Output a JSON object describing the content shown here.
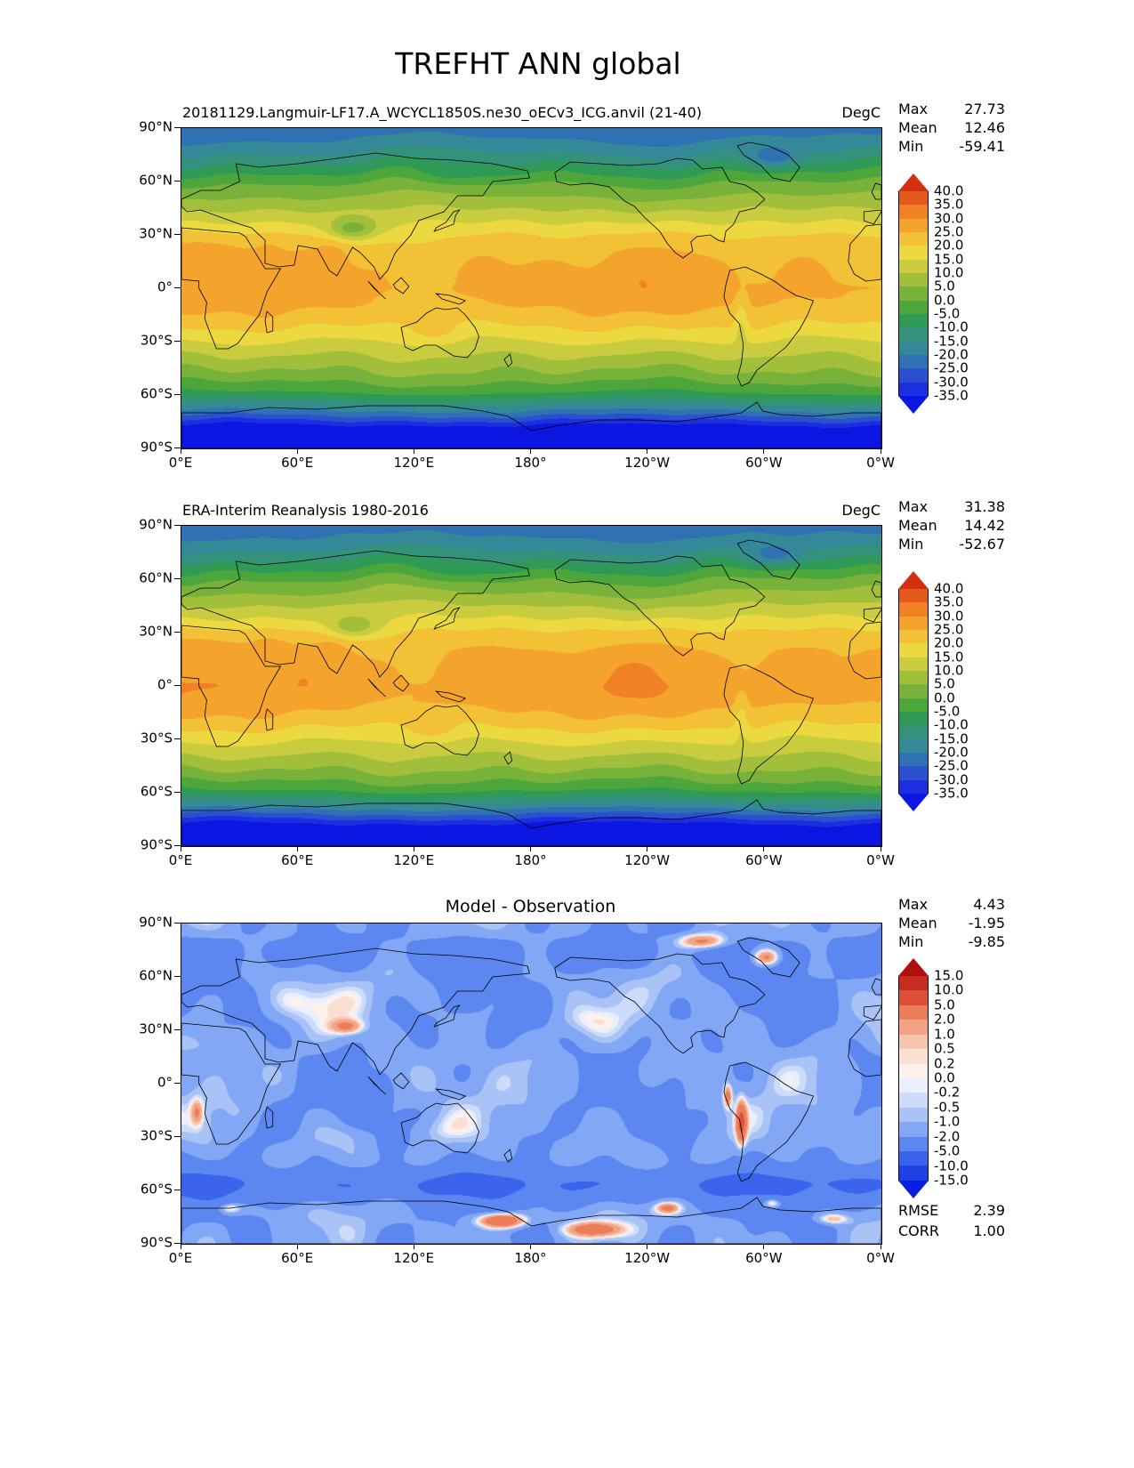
{
  "figure_title": "TREFHT ANN global",
  "axes": {
    "x_tick_labels": [
      "0°E",
      "60°E",
      "120°E",
      "180°",
      "120°W",
      "60°W",
      "0°W"
    ],
    "y_tick_labels": [
      "90°N",
      "60°N",
      "30°N",
      "0°",
      "30°S",
      "60°S",
      "90°S"
    ],
    "x_range_deg": [
      0,
      360
    ],
    "y_range_deg": [
      -90,
      90
    ],
    "grid": false
  },
  "chart_data": [
    {
      "type": "heatmap",
      "projection": "global-equirectangular",
      "title": "20181129.Langmuir-LF17.A_WCYCL1850S.ne30_oECv3_ICG.anvil (21-40)",
      "units": "DegC",
      "stats": {
        "max_label": "Max",
        "max": "27.73",
        "mean_label": "Mean",
        "mean": "12.46",
        "min_label": "Min",
        "min": "-59.41"
      },
      "colorbar": {
        "levels": [
          -35,
          -30,
          -25,
          -20,
          -15,
          -10,
          -5,
          0,
          5,
          10,
          15,
          20,
          25,
          30,
          35,
          40
        ],
        "tick_labels": [
          "40.0",
          "35.0",
          "30.0",
          "25.0",
          "20.0",
          "15.0",
          "10.0",
          "5.0",
          "0.0",
          "-5.0",
          "-10.0",
          "-15.0",
          "-20.0",
          "-25.0",
          "-30.0",
          "-35.0"
        ],
        "colors": [
          "#0b16e0",
          "#1b2fe0",
          "#2b50cf",
          "#2f72b4",
          "#348898",
          "#33917c",
          "#2f9a55",
          "#4ca63c",
          "#78b23a",
          "#a2bf3c",
          "#c9cc3e",
          "#ecd83f",
          "#f2c136",
          "#f4a42d",
          "#f08125",
          "#e35a1c",
          "#d42f10"
        ]
      }
    },
    {
      "type": "heatmap",
      "projection": "global-equirectangular",
      "title": "ERA-Interim Reanalysis 1980-2016",
      "units": "DegC",
      "stats": {
        "max_label": "Max",
        "max": "31.38",
        "mean_label": "Mean",
        "mean": "14.42",
        "min_label": "Min",
        "min": "-52.67"
      },
      "colorbar": {
        "levels": [
          -35,
          -30,
          -25,
          -20,
          -15,
          -10,
          -5,
          0,
          5,
          10,
          15,
          20,
          25,
          30,
          35,
          40
        ],
        "tick_labels": [
          "40.0",
          "35.0",
          "30.0",
          "25.0",
          "20.0",
          "15.0",
          "10.0",
          "5.0",
          "0.0",
          "-5.0",
          "-10.0",
          "-15.0",
          "-20.0",
          "-25.0",
          "-30.0",
          "-35.0"
        ],
        "colors": [
          "#0b16e0",
          "#1b2fe0",
          "#2b50cf",
          "#2f72b4",
          "#348898",
          "#33917c",
          "#2f9a55",
          "#4ca63c",
          "#78b23a",
          "#a2bf3c",
          "#c9cc3e",
          "#ecd83f",
          "#f2c136",
          "#f4a42d",
          "#f08125",
          "#e35a1c",
          "#d42f10"
        ]
      }
    },
    {
      "type": "heatmap",
      "projection": "global-equirectangular",
      "title": "Model - Observation",
      "units": "",
      "stats": {
        "max_label": "Max",
        "max": "4.43",
        "mean_label": "Mean",
        "mean": "-1.95",
        "min_label": "Min",
        "min": "-9.85",
        "rmse_label": "RMSE",
        "rmse": "2.39",
        "corr_label": "CORR",
        "corr": "1.00"
      },
      "colorbar": {
        "levels": [
          -15,
          -10,
          -5,
          -2,
          -1,
          -0.5,
          -0.2,
          0,
          0.2,
          0.5,
          1,
          2,
          5,
          10,
          15
        ],
        "tick_labels": [
          "15.0",
          "10.0",
          "5.0",
          "2.0",
          "1.0",
          "0.5",
          "0.2",
          "0.0",
          "-0.2",
          "-0.5",
          "-1.0",
          "-2.0",
          "-5.0",
          "-10.0",
          "-15.0"
        ],
        "colors": [
          "#0a1fdd",
          "#1f41e6",
          "#3a64ec",
          "#5c86f0",
          "#82a7f4",
          "#a9c3f7",
          "#ccdcfa",
          "#e9effc",
          "#fcf1ec",
          "#fadfd3",
          "#f7c4ad",
          "#f2a383",
          "#ea7d5a",
          "#dd5038",
          "#c62d20",
          "#b00f0f"
        ]
      }
    }
  ]
}
